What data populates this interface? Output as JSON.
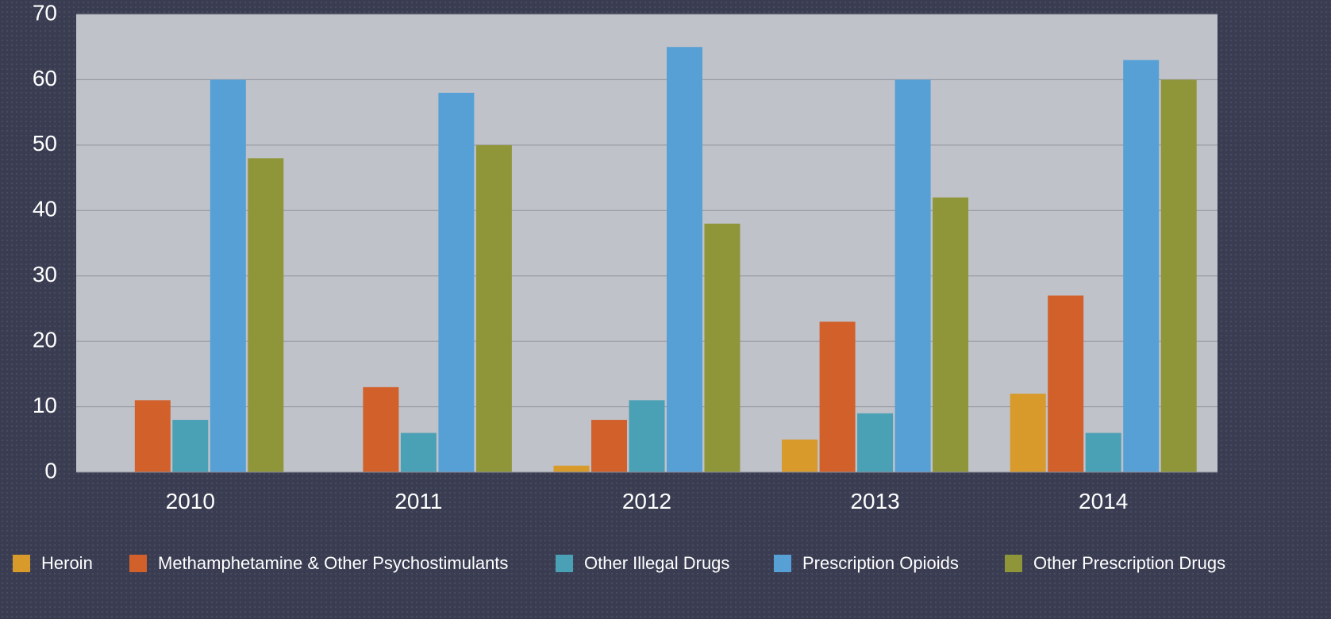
{
  "chart_data": {
    "type": "bar",
    "categories": [
      "2010",
      "2011",
      "2012",
      "2013",
      "2014"
    ],
    "series": [
      {
        "name": "Heroin",
        "color": "#d79a2b",
        "values": [
          0,
          0,
          1,
          5,
          12
        ]
      },
      {
        "name": "Methamphetamine & Other Psychostimulants",
        "color": "#d2602a",
        "values": [
          11,
          13,
          8,
          23,
          27
        ]
      },
      {
        "name": "Other Illegal Drugs",
        "color": "#4aa0b5",
        "values": [
          8,
          6,
          11,
          9,
          6
        ]
      },
      {
        "name": "Prescription Opioids",
        "color": "#56a0d6",
        "values": [
          60,
          58,
          65,
          60,
          63
        ]
      },
      {
        "name": "Other Prescription Drugs",
        "color": "#8f963a",
        "values": [
          48,
          50,
          38,
          42,
          60
        ]
      }
    ],
    "y_ticks": [
      "0",
      "10",
      "20",
      "30",
      "40",
      "50",
      "60",
      "70"
    ],
    "ylim": [
      0,
      70
    ],
    "grid": true,
    "legend_position": "bottom",
    "plot_background": "#c0c2ca",
    "text_color": "#ffffff"
  }
}
